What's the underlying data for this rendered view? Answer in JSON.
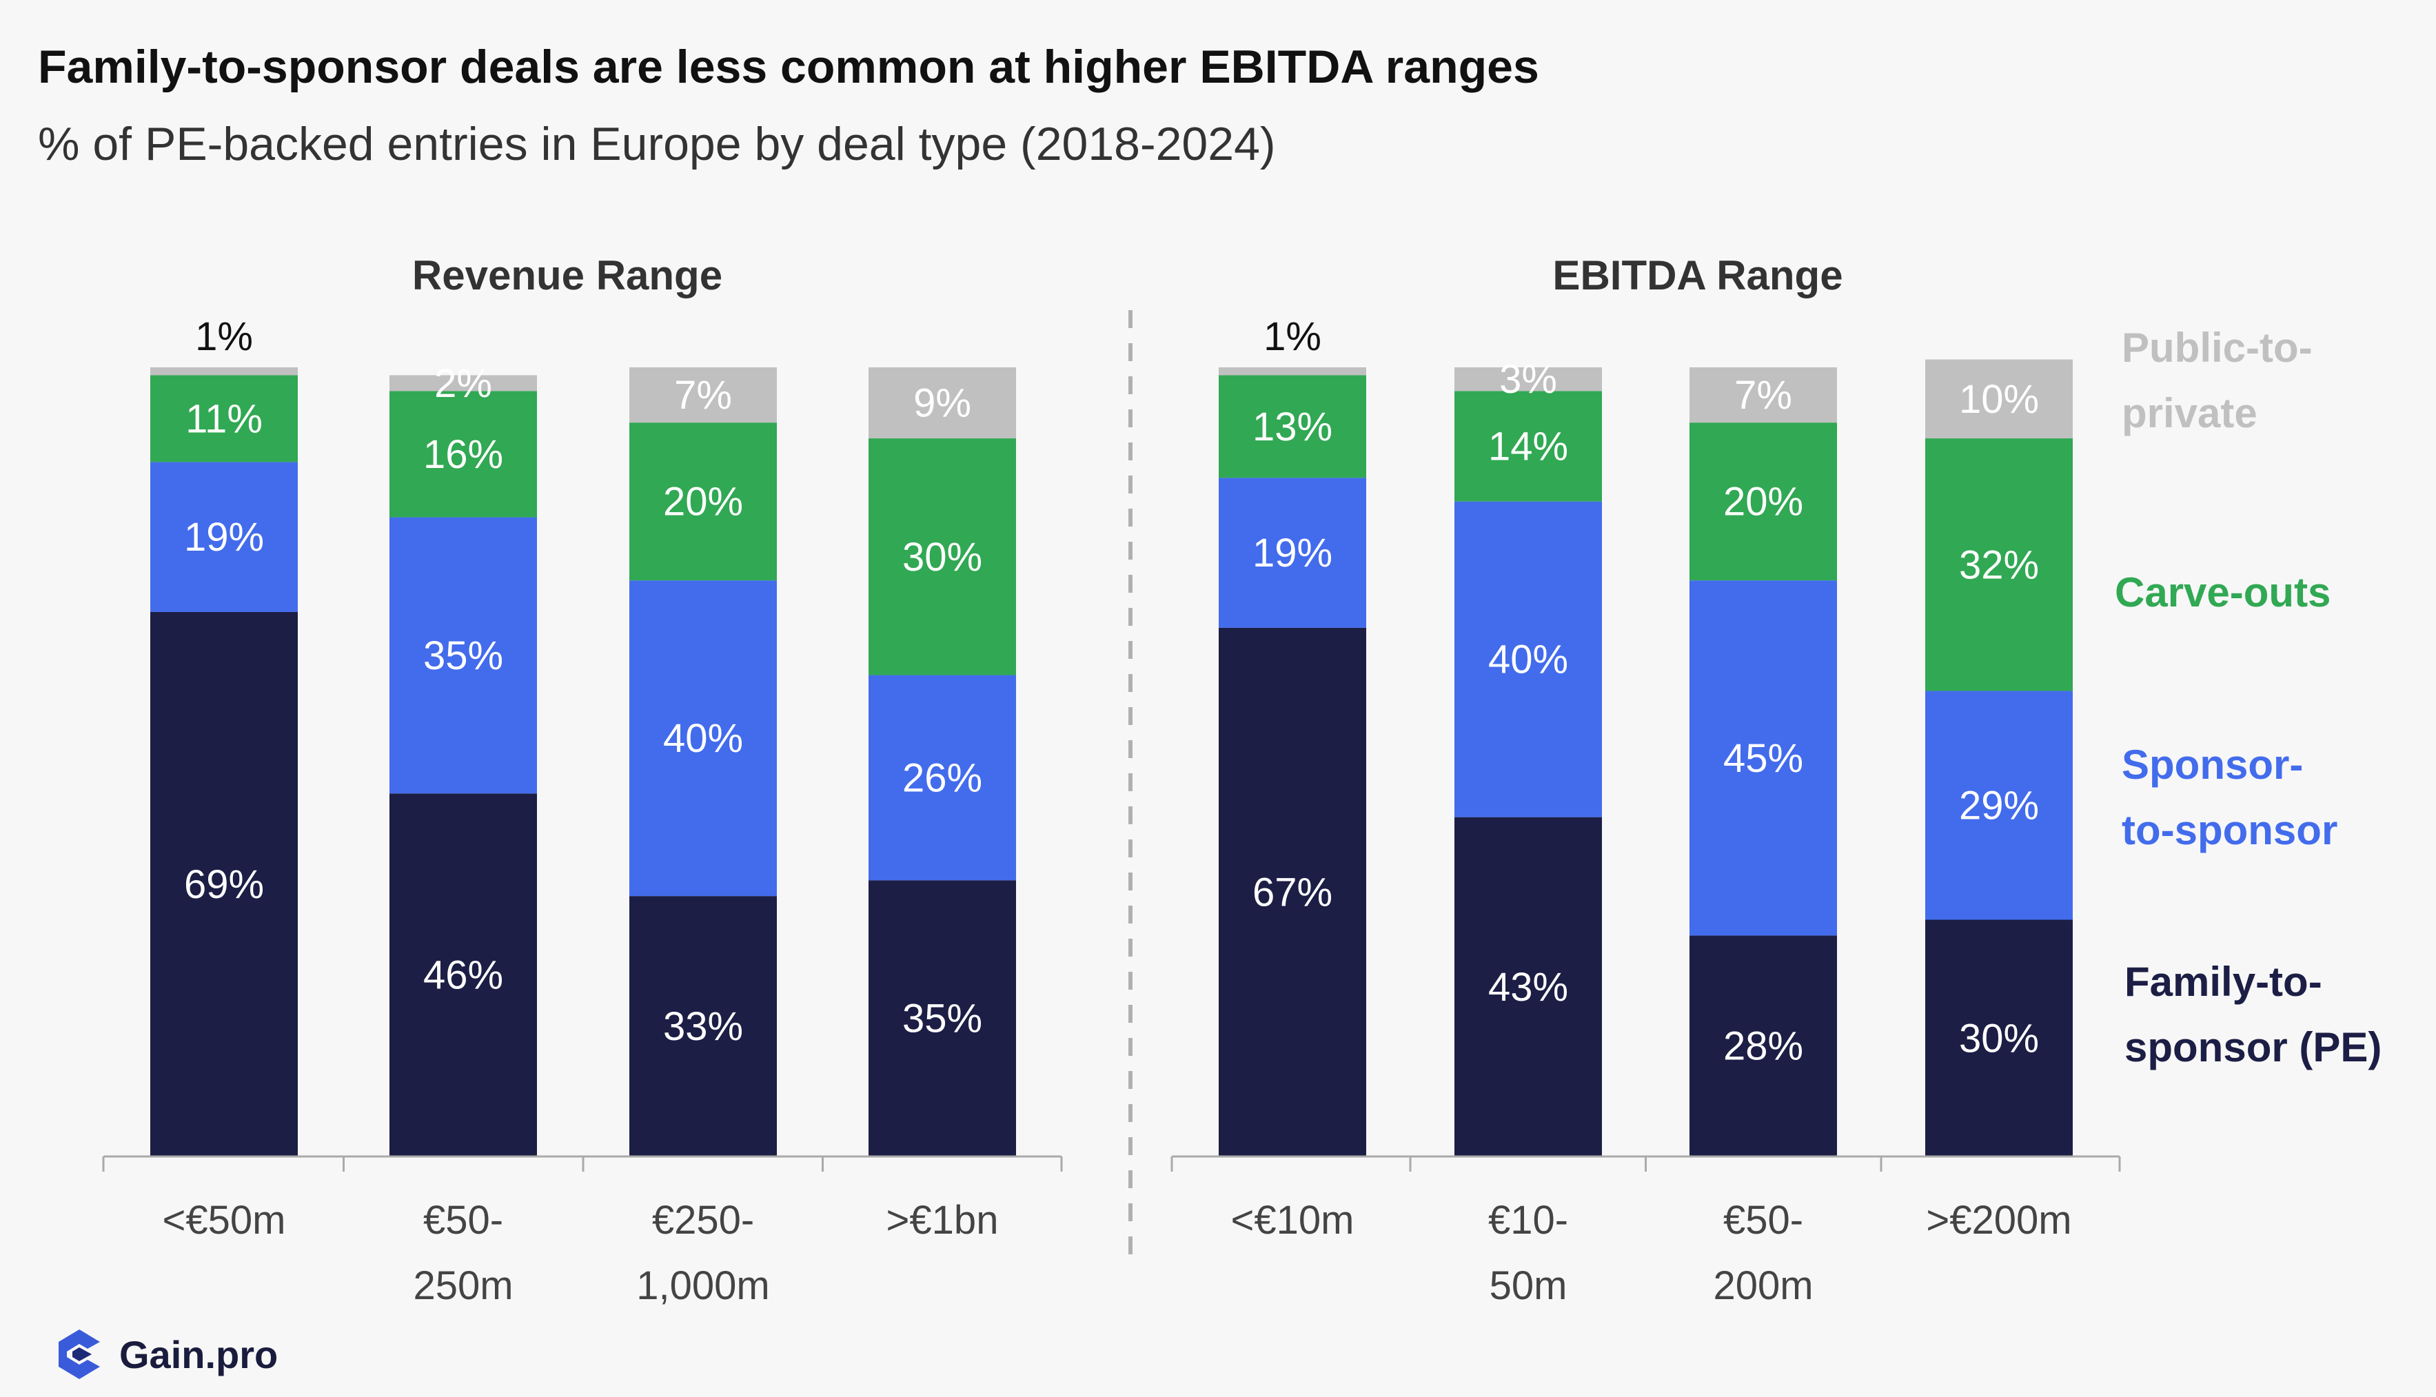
{
  "title": "Family-to-sponsor deals are less common at higher EBITDA ranges",
  "subtitle": "% of PE-backed entries in Europe by deal type (2018-2024)",
  "logo": {
    "text": "Gain.pro"
  },
  "colors": {
    "Family-to-sponsor (PE)": "#1c1e45",
    "Sponsor-to-sponsor": "#436cec",
    "Carve-outs": "#31a853",
    "Public-to-private": "#c0c0c0"
  },
  "chart_data": [
    {
      "type": "bar",
      "stacked": true,
      "panel_title": "Revenue Range",
      "categories": [
        [
          "<€50m"
        ],
        [
          "€50-",
          "250m"
        ],
        [
          "€250-",
          "1,000m"
        ],
        [
          ">€1bn"
        ]
      ],
      "series": [
        {
          "name": "Family-to-sponsor (PE)",
          "values": [
            69,
            46,
            33,
            35
          ]
        },
        {
          "name": "Sponsor-to-sponsor",
          "values": [
            19,
            35,
            40,
            26
          ]
        },
        {
          "name": "Carve-outs",
          "values": [
            11,
            16,
            20,
            30
          ]
        },
        {
          "name": "Public-to-private",
          "values": [
            1,
            2,
            7,
            9
          ]
        }
      ],
      "unit": "%",
      "ylim": [
        0,
        100
      ]
    },
    {
      "type": "bar",
      "stacked": true,
      "panel_title": "EBITDA Range",
      "categories": [
        [
          "<€10m"
        ],
        [
          "€10-",
          "50m"
        ],
        [
          "€50-",
          "200m"
        ],
        [
          ">€200m"
        ]
      ],
      "series": [
        {
          "name": "Family-to-sponsor (PE)",
          "values": [
            67,
            43,
            28,
            30
          ]
        },
        {
          "name": "Sponsor-to-sponsor",
          "values": [
            19,
            40,
            45,
            29
          ]
        },
        {
          "name": "Carve-outs",
          "values": [
            13,
            14,
            20,
            32
          ]
        },
        {
          "name": "Public-to-private",
          "values": [
            1,
            3,
            7,
            10
          ]
        }
      ],
      "unit": "%",
      "ylim": [
        0,
        100
      ]
    }
  ],
  "legend": [
    {
      "series": "Public-to-private",
      "lines": [
        "Public-to-",
        "private"
      ]
    },
    {
      "series": "Carve-outs",
      "lines": [
        "Carve-outs"
      ]
    },
    {
      "series": "Sponsor-to-sponsor",
      "lines": [
        "Sponsor-",
        "to-sponsor"
      ]
    },
    {
      "series": "Family-to-sponsor (PE)",
      "lines": [
        "Family-to-",
        "sponsor (PE)"
      ]
    }
  ]
}
